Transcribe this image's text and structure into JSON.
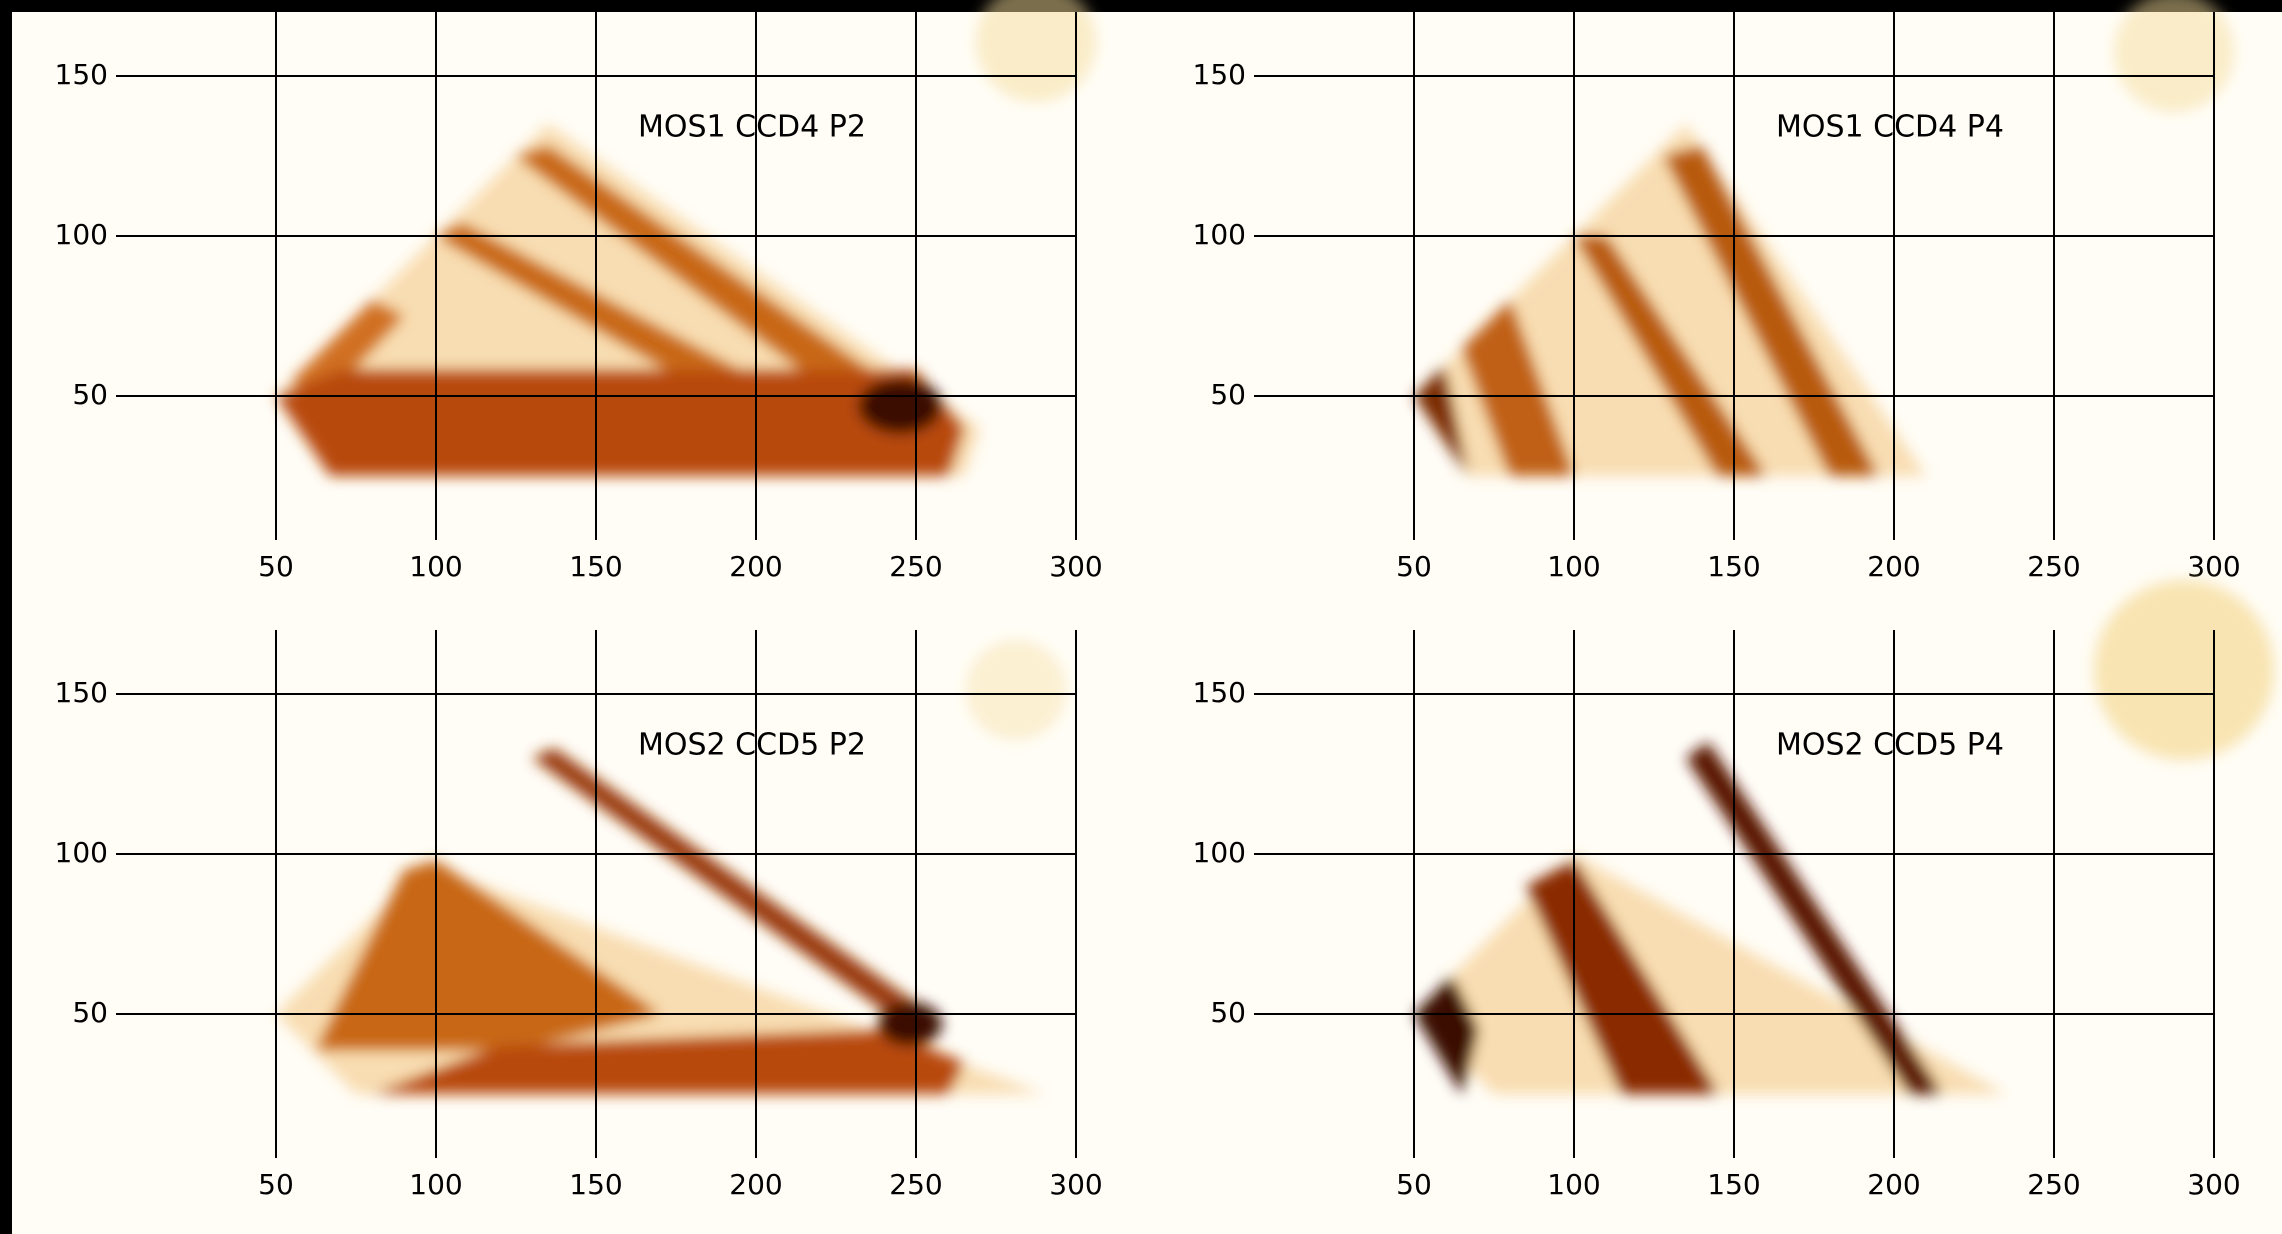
{
  "chart_data": [
    {
      "type": "density",
      "annotation": "MOS1 CCD4 P2",
      "xlim": [
        0,
        300
      ],
      "ylim": [
        5,
        170
      ],
      "xticks": [
        50,
        100,
        150,
        200,
        250,
        300
      ],
      "yticks": [
        50,
        100,
        150
      ],
      "grid": true
    },
    {
      "type": "density",
      "annotation": "MOS1 CCD4 P4",
      "xlim": [
        0,
        300
      ],
      "ylim": [
        5,
        170
      ],
      "xticks": [
        50,
        100,
        150,
        200,
        250,
        300
      ],
      "yticks": [
        50,
        100,
        150
      ],
      "grid": true
    },
    {
      "type": "density",
      "annotation": "MOS2 CCD5 P2",
      "xlim": [
        0,
        300
      ],
      "ylim": [
        5,
        170
      ],
      "xticks": [
        50,
        100,
        150,
        200,
        250,
        300
      ],
      "yticks": [
        50,
        100,
        150
      ],
      "grid": true
    },
    {
      "type": "density",
      "annotation": "MOS2 CCD5 P4",
      "xlim": [
        0,
        300
      ],
      "ylim": [
        5,
        170
      ],
      "xticks": [
        50,
        100,
        150,
        200,
        250,
        300
      ],
      "yticks": [
        50,
        100,
        150
      ],
      "grid": true
    }
  ]
}
